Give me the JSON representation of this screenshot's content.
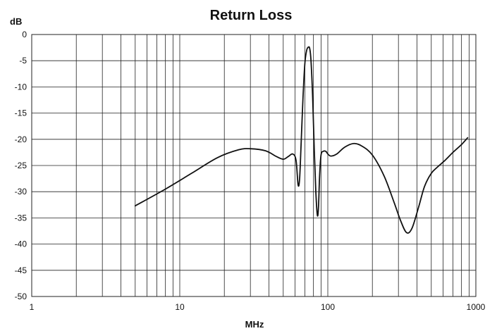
{
  "chart_data": {
    "type": "line",
    "title": "Return Loss",
    "xlabel": "MHz",
    "ylabel": "dB",
    "x_scale": "log",
    "xlim": [
      1,
      1000
    ],
    "ylim": [
      -50,
      0
    ],
    "grid": true,
    "x_ticks": [
      1,
      10,
      100,
      1000
    ],
    "x_tick_labels": [
      "1",
      "10",
      "100",
      "1000"
    ],
    "y_ticks": [
      0,
      -5,
      -10,
      -15,
      -20,
      -25,
      -30,
      -35,
      -40,
      -45,
      -50
    ],
    "y_tick_labels": [
      "0",
      "-5",
      "-10",
      "-15",
      "-20",
      "-25",
      "-30",
      "-35",
      "-40",
      "-45",
      "-50"
    ],
    "series": [
      {
        "color": "#111111",
        "x": [
          5,
          8,
          12,
          18,
          25,
          30,
          38,
          45,
          50,
          54,
          58,
          61,
          63,
          64.5,
          66,
          68,
          70,
          72,
          74,
          75.5,
          77,
          79,
          81,
          83,
          85,
          86.5,
          88,
          90,
          93,
          97,
          100,
          105,
          115,
          130,
          150,
          170,
          200,
          240,
          280,
          310,
          340,
          370,
          410,
          450,
          500,
          550,
          620,
          700,
          800,
          880
        ],
        "y": [
          -32.7,
          -29.5,
          -26.5,
          -23.5,
          -22,
          -21.8,
          -22.2,
          -23.3,
          -23.8,
          -23.3,
          -22.8,
          -24,
          -28.7,
          -27.5,
          -21,
          -12,
          -5.5,
          -3,
          -2.4,
          -2.7,
          -5,
          -12,
          -22,
          -30,
          -34.5,
          -33,
          -27,
          -23,
          -22.3,
          -22.3,
          -22.8,
          -23.2,
          -22.8,
          -21.5,
          -20.8,
          -21.3,
          -23,
          -27,
          -32,
          -35.5,
          -37.8,
          -37,
          -33,
          -29,
          -26.5,
          -25.3,
          -24,
          -22.5,
          -21,
          -19.7
        ]
      }
    ]
  }
}
